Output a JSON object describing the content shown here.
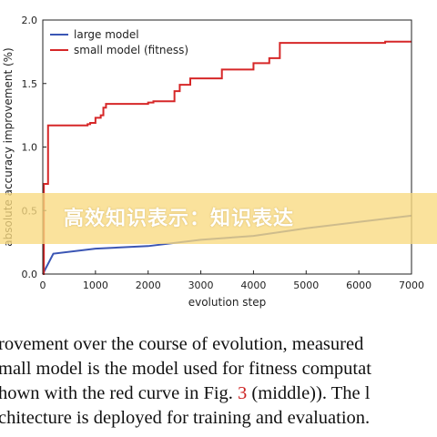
{
  "chart_data": {
    "type": "line",
    "xlabel": "evolution step",
    "ylabel": "absolute accuracy improvement (%)",
    "xlim": [
      0,
      7000
    ],
    "ylim": [
      0.0,
      2.0
    ],
    "x_ticks": [
      "0",
      "1000",
      "2000",
      "3000",
      "4000",
      "5000",
      "6000",
      "7000"
    ],
    "y_ticks": [
      "0.0",
      "0.5",
      "1.0",
      "1.5",
      "2.0"
    ],
    "grid": false,
    "legend_position": "top-left",
    "series": [
      {
        "name": "large model",
        "color": "#3a55b4",
        "style": "line",
        "x": [
          0,
          200,
          1000,
          2000,
          3000,
          4000,
          5000,
          6000,
          7000
        ],
        "y": [
          0.0,
          0.16,
          0.2,
          0.22,
          0.27,
          0.3,
          0.36,
          0.41,
          0.46
        ]
      },
      {
        "name": "small model (fitness)",
        "color": "#d62728",
        "style": "step",
        "x": [
          0,
          20,
          100,
          850,
          900,
          1000,
          1100,
          1150,
          1200,
          2000,
          2100,
          2500,
          2600,
          2800,
          3400,
          4000,
          4300,
          4500,
          6500,
          7000
        ],
        "y": [
          0.0,
          0.71,
          1.17,
          1.18,
          1.19,
          1.23,
          1.25,
          1.31,
          1.34,
          1.35,
          1.36,
          1.44,
          1.49,
          1.54,
          1.61,
          1.66,
          1.7,
          1.82,
          1.83,
          1.83
        ]
      }
    ]
  },
  "watermark": {
    "text": "高效知识表示：知识表达"
  },
  "caption": {
    "line1": "rovement over the course of evolution, measured",
    "line2": "mall model is the model used for fitness computat",
    "line3_before": "hown with the red curve in Fig. ",
    "line3_ref": "3",
    "line3_after": " (middle)). The l",
    "line4": "chitecture is deployed for training and evaluation."
  }
}
